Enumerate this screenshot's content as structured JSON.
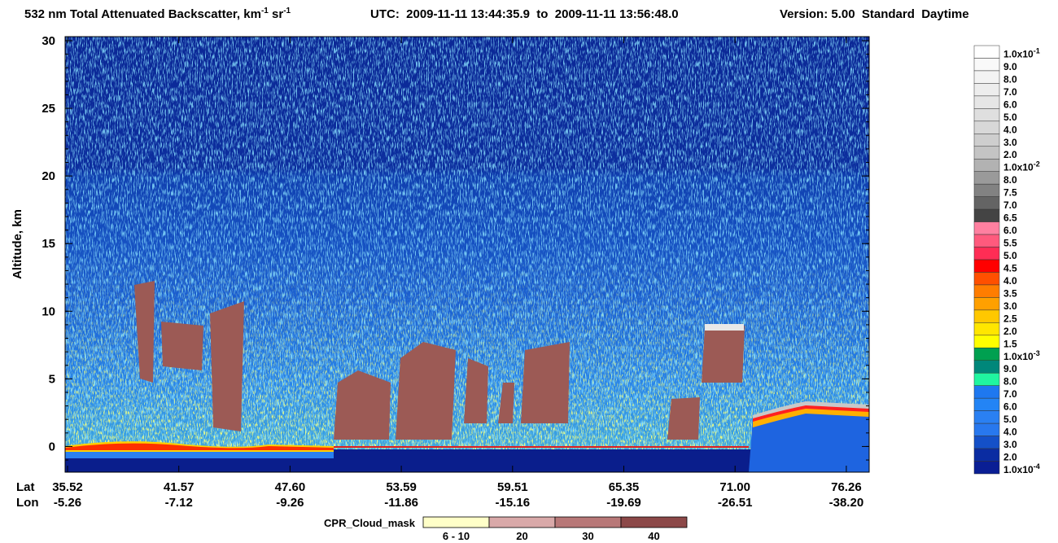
{
  "chart_data": {
    "type": "curtain",
    "title": [
      "532 nm Total Attenuated Backscatter, km",
      "-1",
      " sr",
      "-1"
    ],
    "time_range": "UTC:  2009-11-11 13:44:35.9  to  2009-11-11 13:56:48.0",
    "version": "Version: 5.00  Standard  Daytime",
    "ylabel": "Altitude, km",
    "ylim": [
      -1.9,
      30
    ],
    "yticks": [
      0,
      5,
      10,
      15,
      20,
      25,
      30
    ],
    "x_rows": {
      "lat_label": "Lat",
      "lon_label": "Lon",
      "lat": [
        "35.52",
        "41.57",
        "47.60",
        "53.59",
        "59.51",
        "65.35",
        "71.00",
        "76.26"
      ],
      "lon": [
        "-5.26",
        "-7.12",
        "-9.26",
        "-11.86",
        "-15.16",
        "-19.69",
        "-26.51",
        "-38.20"
      ]
    },
    "colorbar": [
      {
        "label": "1.0x10",
        "sup": "-1",
        "color": "#ffffff"
      },
      {
        "label": "9.0",
        "color": "#f9f9f9"
      },
      {
        "label": "8.0",
        "color": "#f3f3f3"
      },
      {
        "label": "7.0",
        "color": "#ededed"
      },
      {
        "label": "6.0",
        "color": "#e6e6e6"
      },
      {
        "label": "5.0",
        "color": "#dfdfdf"
      },
      {
        "label": "4.0",
        "color": "#d8d8d8"
      },
      {
        "label": "3.0",
        "color": "#cecece"
      },
      {
        "label": "2.0",
        "color": "#c4c4c4"
      },
      {
        "label": "1.0x10",
        "sup": "-2",
        "color": "#b2b2b2"
      },
      {
        "label": "8.0",
        "color": "#9a9a9a"
      },
      {
        "label": "7.5",
        "color": "#828282"
      },
      {
        "label": "7.0",
        "color": "#646464"
      },
      {
        "label": "6.5",
        "color": "#444444"
      },
      {
        "label": "6.0",
        "color": "#ff80a0"
      },
      {
        "label": "5.5",
        "color": "#ff5a7d"
      },
      {
        "label": "5.0",
        "color": "#ff2d55"
      },
      {
        "label": "4.5",
        "color": "#ff0000"
      },
      {
        "label": "4.0",
        "color": "#ff5000"
      },
      {
        "label": "3.5",
        "color": "#ff7d00"
      },
      {
        "label": "3.0",
        "color": "#ffa000"
      },
      {
        "label": "2.5",
        "color": "#ffc800"
      },
      {
        "label": "2.0",
        "color": "#ffe600"
      },
      {
        "label": "1.5",
        "color": "#ffff00"
      },
      {
        "label": "1.0x10",
        "sup": "-3",
        "color": "#00a050"
      },
      {
        "label": "9.0",
        "color": "#00877a"
      },
      {
        "label": "8.0",
        "color": "#20f5a0"
      },
      {
        "label": "7.0",
        "color": "#1e78f0"
      },
      {
        "label": "6.0",
        "color": "#2384f5"
      },
      {
        "label": "5.0",
        "color": "#2a80f2"
      },
      {
        "label": "4.0",
        "color": "#2878ee"
      },
      {
        "label": "3.0",
        "color": "#1450c8"
      },
      {
        "label": "2.0",
        "color": "#0a2ca2"
      },
      {
        "label": "1.0x10",
        "sup": "-4",
        "color": "#0a1e94"
      }
    ],
    "cloud_mask": {
      "title": "CPR_Cloud_mask",
      "categories": [
        "6 - 10",
        "20",
        "30",
        "40"
      ],
      "colors": [
        "#ffffc8",
        "#d9a9a9",
        "#b87878",
        "#8c4848"
      ]
    }
  }
}
